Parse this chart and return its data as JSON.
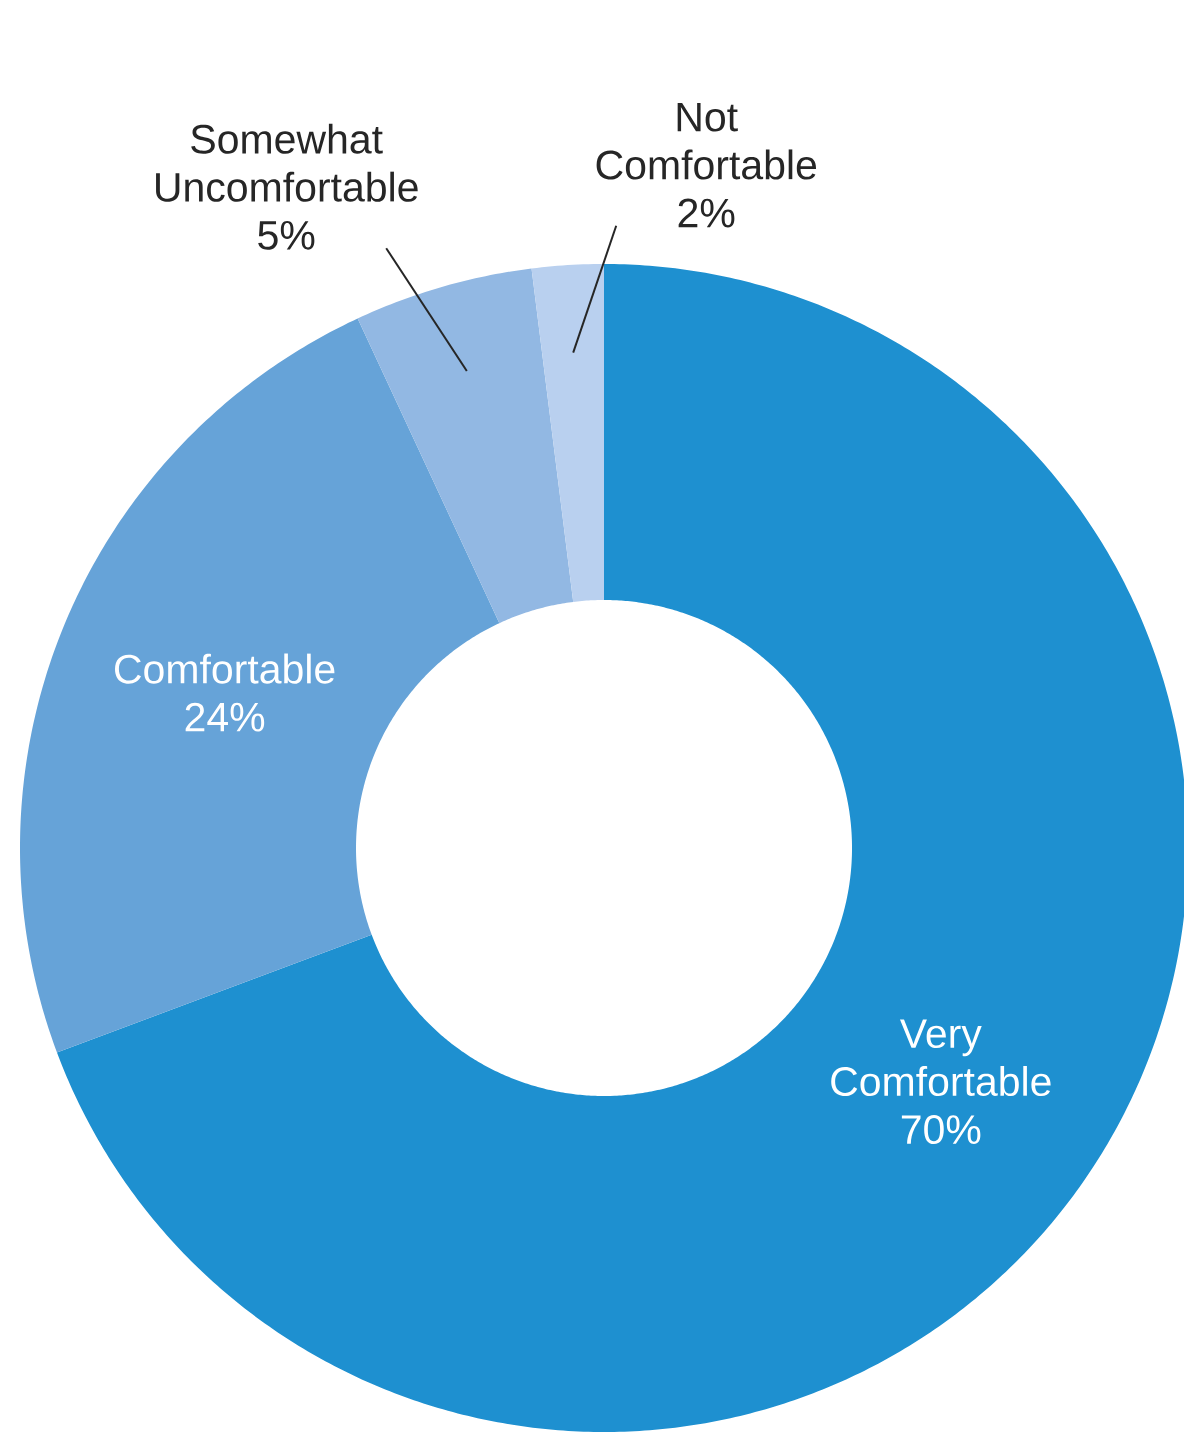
{
  "chart_data": {
    "type": "donut",
    "categories": [
      "Very Comfortable",
      "Comfortable",
      "Somewhat Uncomfortable",
      "Not Comfortable"
    ],
    "values": [
      70,
      24,
      5,
      2
    ],
    "value_labels": [
      "70%",
      "24%",
      "5%",
      "2%"
    ],
    "colors": [
      "#1e90d0",
      "#66a3d8",
      "#92b8e3",
      "#b9d0ef"
    ]
  }
}
